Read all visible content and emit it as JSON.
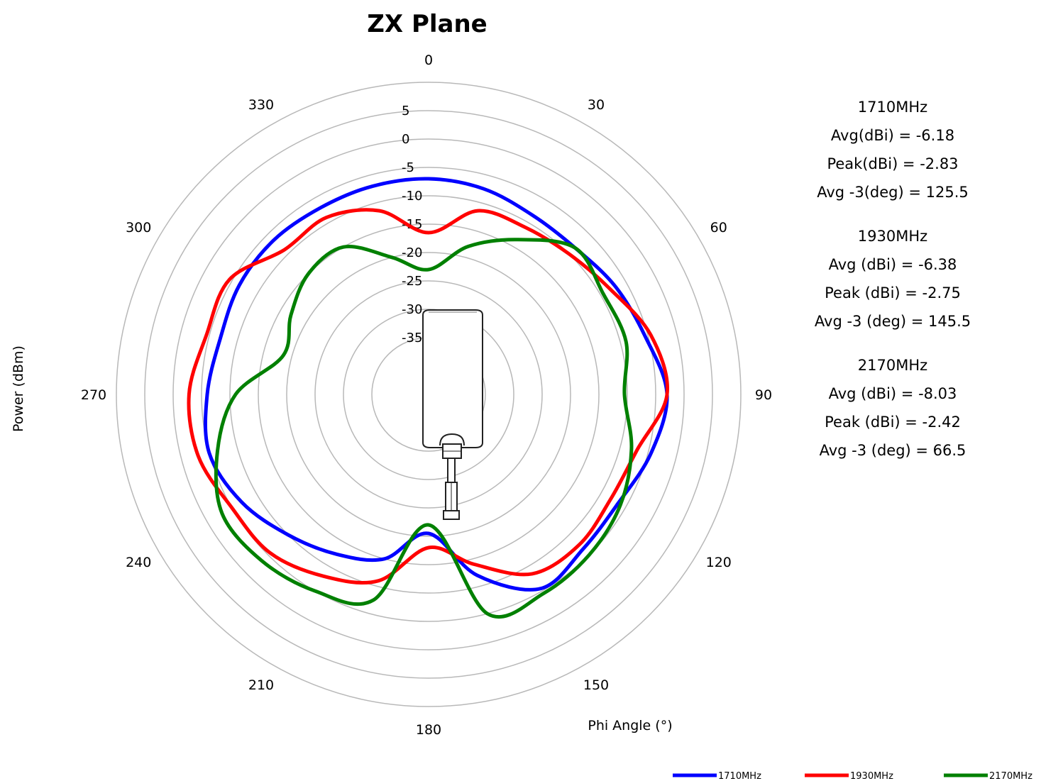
{
  "chart_data": {
    "type": "polar-line",
    "title": "ZX Plane",
    "xlabel": "Phi Angle (°)",
    "ylabel": "Power (dBm)",
    "radial_ticks": [
      "5",
      "0",
      "-5",
      "-10",
      "-15",
      "-20",
      "-25",
      "-30",
      "-35"
    ],
    "radial_values": [
      5,
      0,
      -5,
      -10,
      -15,
      -20,
      -25,
      -30,
      -35
    ],
    "r_range": [
      -45,
      10
    ],
    "angle_ticks": [
      "0",
      "30",
      "60",
      "90",
      "120",
      "150",
      "180",
      "210",
      "240",
      "270",
      "300",
      "330"
    ],
    "angle_values": [
      0,
      30,
      60,
      90,
      120,
      150,
      180,
      210,
      240,
      270,
      300,
      330
    ],
    "direction": "clockwise",
    "zero_at": "top",
    "legend_position": "bottom-right",
    "angles": [
      0,
      15,
      30,
      45,
      60,
      75,
      90,
      105,
      120,
      135,
      150,
      165,
      180,
      195,
      210,
      225,
      240,
      255,
      270,
      285,
      300,
      315,
      330,
      345
    ],
    "series": [
      {
        "name": "1710MHz",
        "color": "#0000ff",
        "values": [
          -7,
          -7.5,
          -8.5,
          -8.5,
          -7,
          -5.5,
          -3,
          -4.5,
          -6.5,
          -6.5,
          -5.5,
          -12,
          -20.5,
          -15,
          -12.5,
          -10,
          -7,
          -5,
          -6,
          -7,
          -6.5,
          -6.5,
          -7,
          -7
        ]
      },
      {
        "name": "1930MHz",
        "color": "#ff0000",
        "values": [
          -16.5,
          -11.5,
          -11,
          -10,
          -8,
          -4.5,
          -3,
          -7,
          -8,
          -7.5,
          -8.5,
          -14,
          -18,
          -11,
          -8,
          -5.5,
          -5,
          -3,
          -2.8,
          -4.5,
          -4.5,
          -9,
          -9,
          -11.5
        ]
      },
      {
        "name": "2170MHz",
        "color": "#008000",
        "values": [
          -23,
          -18,
          -13.5,
          -8.5,
          -9.5,
          -9,
          -10.5,
          -8,
          -6,
          -5,
          -4.5,
          -5,
          -22,
          -7.5,
          -5,
          -3.5,
          -3,
          -6.5,
          -11,
          -18.5,
          -17,
          -15,
          -15,
          -20
        ]
      }
    ],
    "stats": [
      {
        "header": "1710MHz",
        "lines": [
          "Avg(dBi) =  -6.18",
          "Peak(dBi) =  -2.83",
          "Avg -3(deg) =  125.5"
        ]
      },
      {
        "header": "1930MHz",
        "lines": [
          "Avg (dBi) =   -6.38",
          "Peak (dBi) =   -2.75",
          "Avg -3 (deg) =   145.5"
        ]
      },
      {
        "header": "2170MHz",
        "lines": [
          "Avg (dBi) =  -8.03",
          "Peak (dBi) =  -2.42",
          "Avg -3 (deg) =  66.5"
        ]
      }
    ]
  }
}
